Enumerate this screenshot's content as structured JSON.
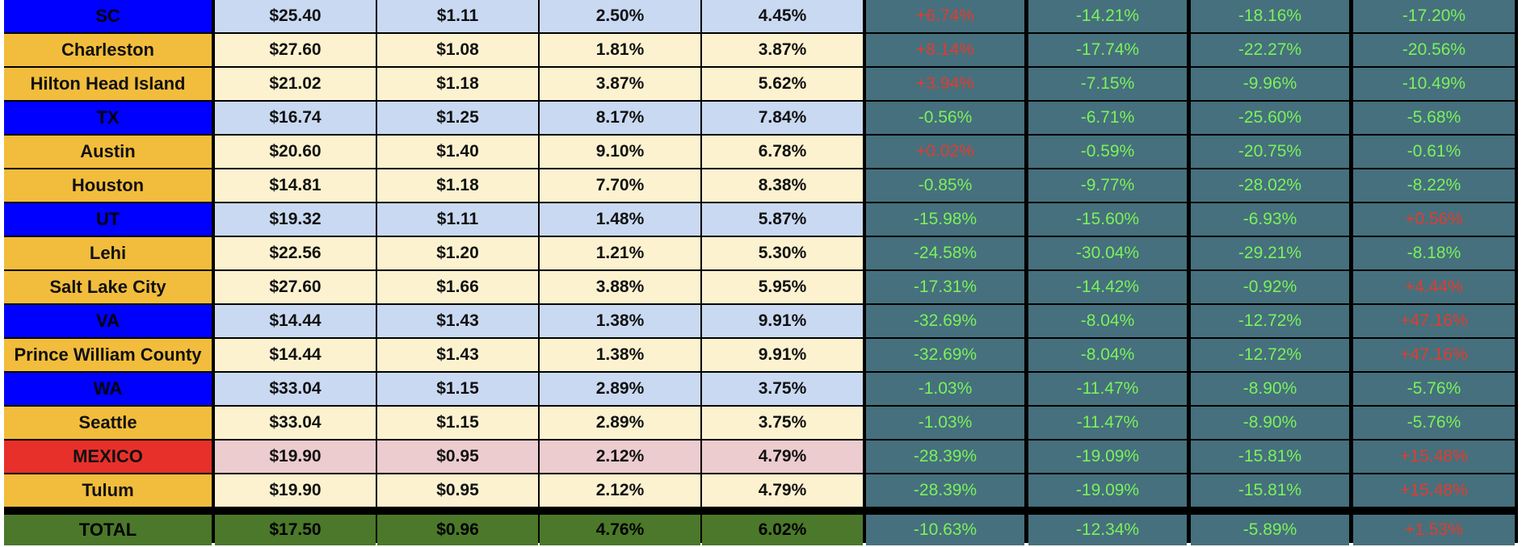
{
  "colors": {
    "state_label_bg": "#0000ff",
    "state_value_bg": "#c9d9f2",
    "city_label_bg": "#f2bd3c",
    "city_value_bg": "#fdf2cf",
    "country_label_bg": "#e8302b",
    "country_value_bg": "#ecccce",
    "total_bg": "#4b782a",
    "change_bg": "#46707d",
    "positive_change_text": "#e33b2e",
    "negative_change_text": "#7af25a"
  },
  "rows": [
    {
      "kind": "state",
      "name": "SC",
      "values": [
        "$25.40",
        "$1.11",
        "2.50%",
        "4.45%"
      ],
      "changes": [
        "+6.74%",
        "-14.21%",
        "-18.16%",
        "-17.20%"
      ]
    },
    {
      "kind": "city",
      "name": "Charleston",
      "values": [
        "$27.60",
        "$1.08",
        "1.81%",
        "3.87%"
      ],
      "changes": [
        "+8.14%",
        "-17.74%",
        "-22.27%",
        "-20.56%"
      ]
    },
    {
      "kind": "city",
      "name": "Hilton Head Island",
      "values": [
        "$21.02",
        "$1.18",
        "3.87%",
        "5.62%"
      ],
      "changes": [
        "+3.94%",
        "-7.15%",
        "-9.96%",
        "-10.49%"
      ]
    },
    {
      "kind": "state",
      "name": "TX",
      "values": [
        "$16.74",
        "$1.25",
        "8.17%",
        "7.84%"
      ],
      "changes": [
        "-0.56%",
        "-6.71%",
        "-25.60%",
        "-5.68%"
      ]
    },
    {
      "kind": "city",
      "name": "Austin",
      "values": [
        "$20.60",
        "$1.40",
        "9.10%",
        "6.78%"
      ],
      "changes": [
        "+0.02%",
        "-0.59%",
        "-20.75%",
        "-0.61%"
      ]
    },
    {
      "kind": "city",
      "name": "Houston",
      "values": [
        "$14.81",
        "$1.18",
        "7.70%",
        "8.38%"
      ],
      "changes": [
        "-0.85%",
        "-9.77%",
        "-28.02%",
        "-8.22%"
      ]
    },
    {
      "kind": "state",
      "name": "UT",
      "values": [
        "$19.32",
        "$1.11",
        "1.48%",
        "5.87%"
      ],
      "changes": [
        "-15.98%",
        "-15.60%",
        "-6.93%",
        "+0.56%"
      ]
    },
    {
      "kind": "city",
      "name": "Lehi",
      "values": [
        "$22.56",
        "$1.20",
        "1.21%",
        "5.30%"
      ],
      "changes": [
        "-24.58%",
        "-30.04%",
        "-29.21%",
        "-8.18%"
      ]
    },
    {
      "kind": "city",
      "name": "Salt Lake City",
      "values": [
        "$27.60",
        "$1.66",
        "3.88%",
        "5.95%"
      ],
      "changes": [
        "-17.31%",
        "-14.42%",
        "-0.92%",
        "+4.44%"
      ]
    },
    {
      "kind": "state",
      "name": "VA",
      "values": [
        "$14.44",
        "$1.43",
        "1.38%",
        "9.91%"
      ],
      "changes": [
        "-32.69%",
        "-8.04%",
        "-12.72%",
        "+47.16%"
      ]
    },
    {
      "kind": "city",
      "name": "Prince William County",
      "values": [
        "$14.44",
        "$1.43",
        "1.38%",
        "9.91%"
      ],
      "changes": [
        "-32.69%",
        "-8.04%",
        "-12.72%",
        "+47.16%"
      ]
    },
    {
      "kind": "state",
      "name": "WA",
      "values": [
        "$33.04",
        "$1.15",
        "2.89%",
        "3.75%"
      ],
      "changes": [
        "-1.03%",
        "-11.47%",
        "-8.90%",
        "-5.76%"
      ]
    },
    {
      "kind": "city",
      "name": "Seattle",
      "values": [
        "$33.04",
        "$1.15",
        "2.89%",
        "3.75%"
      ],
      "changes": [
        "-1.03%",
        "-11.47%",
        "-8.90%",
        "-5.76%"
      ]
    },
    {
      "kind": "mexico",
      "name": "MEXICO",
      "values": [
        "$19.90",
        "$0.95",
        "2.12%",
        "4.79%"
      ],
      "changes": [
        "-28.39%",
        "-19.09%",
        "-15.81%",
        "+15.48%"
      ]
    },
    {
      "kind": "city",
      "name": "Tulum",
      "values": [
        "$19.90",
        "$0.95",
        "2.12%",
        "4.79%"
      ],
      "changes": [
        "-28.39%",
        "-19.09%",
        "-15.81%",
        "+15.48%"
      ]
    }
  ],
  "total": {
    "name": "TOTAL",
    "values": [
      "$17.50",
      "$0.96",
      "4.76%",
      "6.02%"
    ],
    "changes": [
      "-10.63%",
      "-12.34%",
      "-5.89%",
      "+1.53%"
    ]
  }
}
